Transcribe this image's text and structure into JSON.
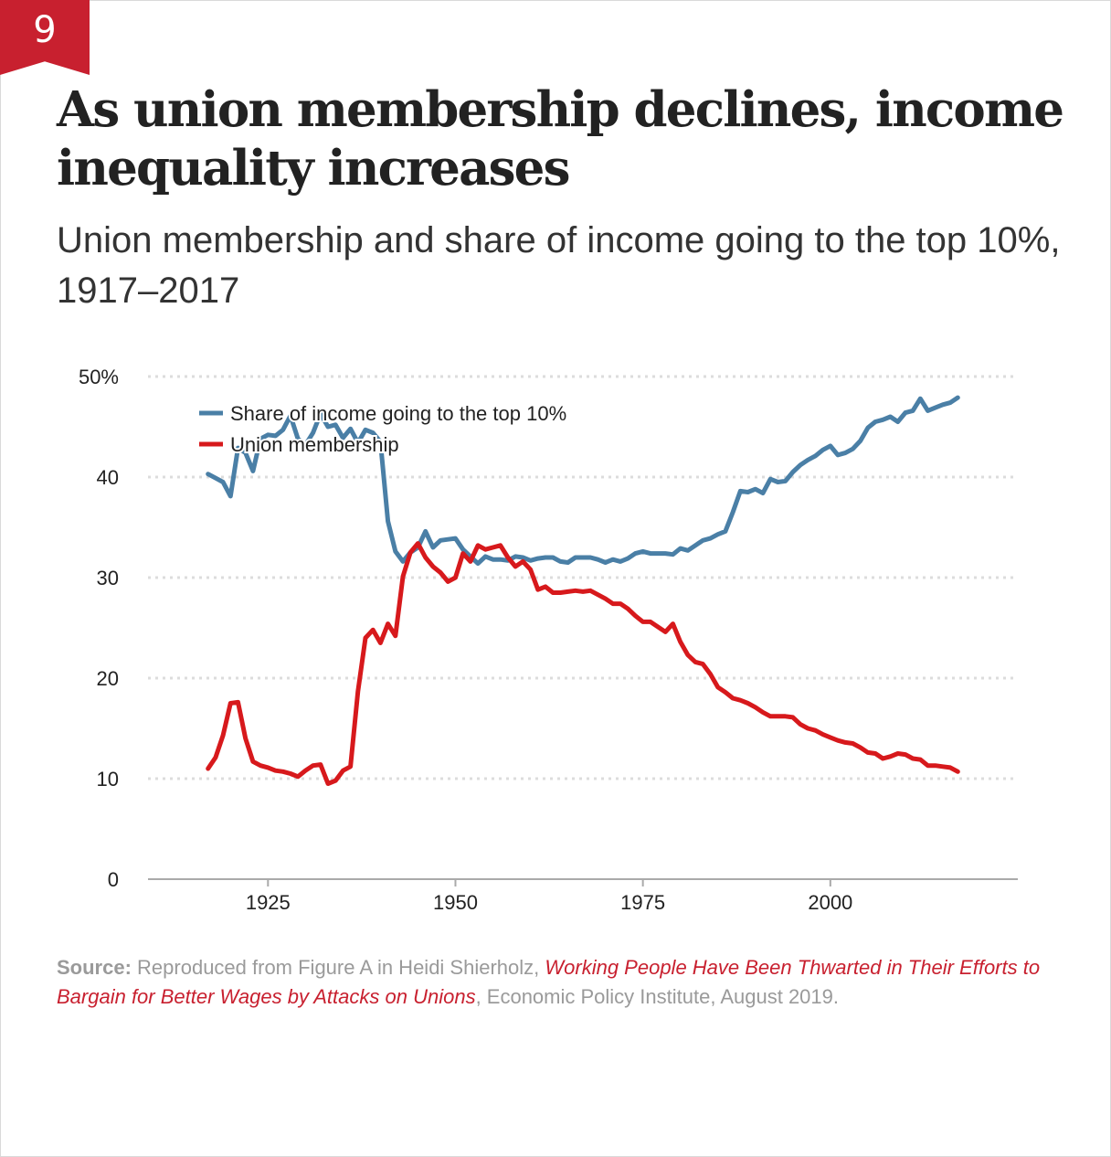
{
  "badge": {
    "number": "9"
  },
  "title": "As union membership declines, income inequality increases",
  "subtitle": "Union membership and share of income going to the top 10%, 1917–2017",
  "source": {
    "label": "Source:",
    "text_before": " Reproduced from Figure A in Heidi Shierholz, ",
    "link_text": "Working People Have Been Thwarted in Their Efforts to Bargain for Better Wages by Attacks on Unions",
    "text_after": ", Economic Policy Institute, August 2019."
  },
  "colors": {
    "accent": "#c8202f",
    "income_series": "#4a7fa6",
    "union_series": "#d7191c",
    "grid": "#dcdcdc",
    "axis": "#aaaaaa"
  },
  "chart_data": {
    "type": "line",
    "title": "Union membership and share of income going to the top 10%, 1917–2017",
    "xlabel": "",
    "ylabel": "",
    "xlim": [
      1909,
      2025
    ],
    "ylim": [
      0,
      50
    ],
    "x_ticks": [
      1925,
      1950,
      1975,
      2000
    ],
    "x_tick_labels": [
      "1925",
      "1950",
      "1975",
      "2000"
    ],
    "y_ticks": [
      0,
      10,
      20,
      30,
      40,
      50
    ],
    "y_tick_labels": [
      "0",
      "10",
      "20",
      "30",
      "40",
      "50%"
    ],
    "grid": true,
    "legend_position": "top-left",
    "series": [
      {
        "name": "Share of income going to the top 10%",
        "color": "#4a7fa6",
        "x": [
          1917,
          1918,
          1919,
          1920,
          1921,
          1922,
          1923,
          1924,
          1925,
          1926,
          1927,
          1928,
          1929,
          1930,
          1931,
          1932,
          1933,
          1934,
          1935,
          1936,
          1937,
          1938,
          1939,
          1940,
          1941,
          1942,
          1943,
          1944,
          1945,
          1946,
          1947,
          1948,
          1949,
          1950,
          1951,
          1952,
          1953,
          1954,
          1955,
          1956,
          1957,
          1958,
          1959,
          1960,
          1961,
          1962,
          1963,
          1964,
          1965,
          1966,
          1967,
          1968,
          1969,
          1970,
          1971,
          1972,
          1973,
          1974,
          1975,
          1976,
          1977,
          1978,
          1979,
          1980,
          1981,
          1982,
          1983,
          1984,
          1985,
          1986,
          1987,
          1988,
          1989,
          1990,
          1991,
          1992,
          1993,
          1994,
          1995,
          1996,
          1997,
          1998,
          1999,
          2000,
          2001,
          2002,
          2003,
          2004,
          2005,
          2006,
          2007,
          2008,
          2009,
          2010,
          2011,
          2012,
          2013,
          2014,
          2015,
          2016,
          2017
        ],
        "values": [
          40.3,
          39.9,
          39.5,
          38.1,
          42.9,
          42.4,
          40.6,
          43.8,
          44.2,
          44.1,
          44.7,
          46.1,
          43.8,
          43.2,
          44.4,
          46.3,
          45.0,
          45.2,
          43.9,
          44.8,
          43.4,
          44.7,
          44.4,
          43.5,
          35.6,
          32.6,
          31.6,
          32.5,
          33.0,
          34.6,
          33.0,
          33.7,
          33.8,
          33.9,
          32.8,
          32.1,
          31.4,
          32.1,
          31.8,
          31.8,
          31.7,
          32.1,
          32.0,
          31.7,
          31.9,
          32.0,
          32.0,
          31.6,
          31.5,
          32.0,
          32.0,
          32.0,
          31.8,
          31.5,
          31.8,
          31.6,
          31.9,
          32.4,
          32.6,
          32.4,
          32.4,
          32.4,
          32.3,
          32.9,
          32.7,
          33.2,
          33.7,
          33.9,
          34.3,
          34.6,
          36.5,
          38.6,
          38.5,
          38.8,
          38.4,
          39.8,
          39.5,
          39.6,
          40.5,
          41.2,
          41.7,
          42.1,
          42.7,
          43.1,
          42.2,
          42.4,
          42.8,
          43.6,
          44.9,
          45.5,
          45.7,
          46.0,
          45.5,
          46.4,
          46.6,
          47.8,
          46.6,
          46.9,
          47.2,
          47.4,
          47.9
        ]
      },
      {
        "name": "Union membership",
        "color": "#d7191c",
        "x": [
          1917,
          1918,
          1919,
          1920,
          1921,
          1922,
          1923,
          1924,
          1925,
          1926,
          1927,
          1928,
          1929,
          1930,
          1931,
          1932,
          1933,
          1934,
          1935,
          1936,
          1937,
          1938,
          1939,
          1940,
          1941,
          1942,
          1943,
          1944,
          1945,
          1946,
          1947,
          1948,
          1949,
          1950,
          1951,
          1952,
          1953,
          1954,
          1955,
          1956,
          1957,
          1958,
          1959,
          1960,
          1961,
          1962,
          1963,
          1964,
          1965,
          1966,
          1967,
          1968,
          1969,
          1970,
          1971,
          1972,
          1973,
          1974,
          1975,
          1976,
          1977,
          1978,
          1979,
          1980,
          1981,
          1982,
          1983,
          1984,
          1985,
          1986,
          1987,
          1988,
          1989,
          1990,
          1991,
          1992,
          1993,
          1994,
          1995,
          1996,
          1997,
          1998,
          1999,
          2000,
          2001,
          2002,
          2003,
          2004,
          2005,
          2006,
          2007,
          2008,
          2009,
          2010,
          2011,
          2012,
          2013,
          2014,
          2015,
          2016,
          2017
        ],
        "values": [
          11.0,
          12.1,
          14.3,
          17.5,
          17.6,
          14.0,
          11.7,
          11.3,
          11.1,
          10.8,
          10.7,
          10.5,
          10.2,
          10.8,
          11.3,
          11.4,
          9.5,
          9.8,
          10.8,
          11.2,
          18.7,
          24.0,
          24.8,
          23.5,
          25.4,
          24.2,
          30.1,
          32.5,
          33.4,
          32.0,
          31.1,
          30.5,
          29.6,
          30.0,
          32.4,
          31.6,
          33.2,
          32.8,
          33.0,
          33.2,
          32.0,
          31.1,
          31.6,
          30.8,
          28.8,
          29.1,
          28.5,
          28.5,
          28.6,
          28.7,
          28.6,
          28.7,
          28.3,
          27.9,
          27.4,
          27.4,
          26.9,
          26.2,
          25.6,
          25.6,
          25.1,
          24.6,
          25.4,
          23.6,
          22.3,
          21.6,
          21.4,
          20.4,
          19.1,
          18.6,
          18.0,
          17.8,
          17.5,
          17.1,
          16.6,
          16.2,
          16.2,
          16.2,
          16.1,
          15.4,
          15.0,
          14.8,
          14.4,
          14.1,
          13.8,
          13.6,
          13.5,
          13.1,
          12.6,
          12.5,
          12.0,
          12.2,
          12.5,
          12.4,
          12.0,
          11.9,
          11.3,
          11.3,
          11.2,
          11.1,
          10.7
        ]
      }
    ]
  }
}
